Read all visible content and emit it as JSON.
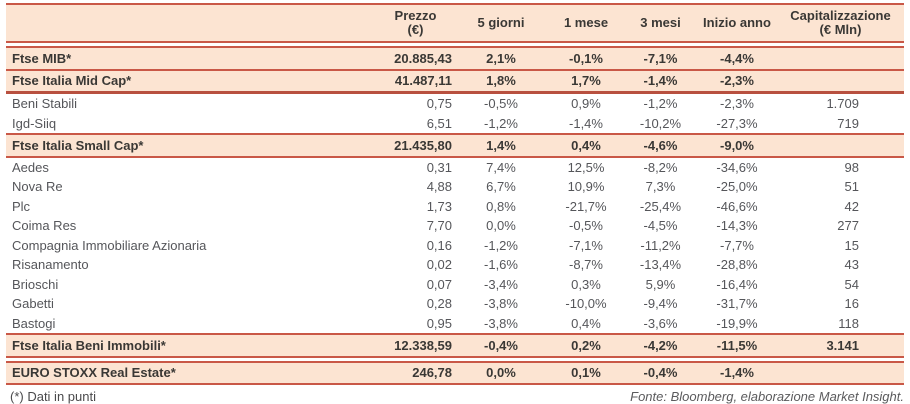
{
  "colors": {
    "row_highlight": "#fce4d2",
    "rule_red": "#c95847",
    "text_dark": "#3a3835",
    "text_gray": "#55565a"
  },
  "header": {
    "name": "",
    "prezzo": "Prezzo\n(€)",
    "g5": "5 giorni",
    "m1": "1 mese",
    "m3": "3 mesi",
    "inizio": "Inizio anno",
    "cap": "Capitalizzazione\n(€ Mln)"
  },
  "rows": [
    {
      "name": "Ftse MIB*",
      "kind": "index",
      "sep_after": "line",
      "values": [
        "20.885,43",
        "2,1%",
        "-0,1%",
        "-7,1%",
        "-4,4%",
        ""
      ]
    },
    {
      "name": "Ftse Italia Mid Cap*",
      "kind": "index",
      "sep_after": "thick",
      "values": [
        "41.487,11",
        "1,8%",
        "1,7%",
        "-1,4%",
        "-2,3%",
        ""
      ]
    },
    {
      "name": "Beni Stabili",
      "kind": "stock",
      "sep_after": "none",
      "values": [
        "0,75",
        "-0,5%",
        "0,9%",
        "-1,2%",
        "-2,3%",
        "1.709"
      ]
    },
    {
      "name": "Igd-Siiq",
      "kind": "stock",
      "sep_after": "line",
      "values": [
        "6,51",
        "-1,2%",
        "-1,4%",
        "-10,2%",
        "-27,3%",
        "719"
      ]
    },
    {
      "name": "Ftse Italia Small Cap*",
      "kind": "index",
      "sep_after": "line",
      "values": [
        "21.435,80",
        "1,4%",
        "0,4%",
        "-4,6%",
        "-9,0%",
        ""
      ]
    },
    {
      "name": "Aedes",
      "kind": "stock",
      "sep_after": "none",
      "values": [
        "0,31",
        "7,4%",
        "12,5%",
        "-8,2%",
        "-34,6%",
        "98"
      ]
    },
    {
      "name": "Nova Re",
      "kind": "stock",
      "sep_after": "none",
      "values": [
        "4,88",
        "6,7%",
        "10,9%",
        "7,3%",
        "-25,0%",
        "51"
      ]
    },
    {
      "name": "Plc",
      "kind": "stock",
      "sep_after": "none",
      "values": [
        "1,73",
        "0,8%",
        "-21,7%",
        "-25,4%",
        "-46,6%",
        "42"
      ]
    },
    {
      "name": "Coima Res",
      "kind": "stock",
      "sep_after": "none",
      "values": [
        "7,70",
        "0,0%",
        "-0,5%",
        "-4,5%",
        "-14,3%",
        "277"
      ]
    },
    {
      "name": "Compagnia Immobiliare Azionaria",
      "kind": "stock",
      "sep_after": "none",
      "values": [
        "0,16",
        "-1,2%",
        "-7,1%",
        "-11,2%",
        "-7,7%",
        "15"
      ]
    },
    {
      "name": "Risanamento",
      "kind": "stock",
      "sep_after": "none",
      "values": [
        "0,02",
        "-1,6%",
        "-8,7%",
        "-13,4%",
        "-28,8%",
        "43"
      ]
    },
    {
      "name": "Brioschi",
      "kind": "stock",
      "sep_after": "none",
      "values": [
        "0,07",
        "-3,4%",
        "0,3%",
        "5,9%",
        "-16,4%",
        "54"
      ]
    },
    {
      "name": "Gabetti",
      "kind": "stock",
      "sep_after": "none",
      "values": [
        "0,28",
        "-3,8%",
        "-10,0%",
        "-9,4%",
        "-31,7%",
        "16"
      ]
    },
    {
      "name": "Bastogi",
      "kind": "stock",
      "sep_after": "line",
      "values": [
        "0,95",
        "-3,8%",
        "0,4%",
        "-3,6%",
        "-19,9%",
        "118"
      ]
    },
    {
      "name": "Ftse Italia Beni Immobili*",
      "kind": "index",
      "sep_after": "double",
      "values": [
        "12.338,59",
        "-0,4%",
        "0,2%",
        "-4,2%",
        "-11,5%",
        "3.141"
      ]
    },
    {
      "name": "EURO STOXX Real Estate*",
      "kind": "index",
      "sep_after": "line",
      "values": [
        "246,78",
        "0,0%",
        "0,1%",
        "-0,4%",
        "-1,4%",
        ""
      ]
    }
  ],
  "footer": {
    "note": "(*) Dati in punti",
    "source": "Fonte: Bloomberg, elaborazione Market Insight."
  }
}
